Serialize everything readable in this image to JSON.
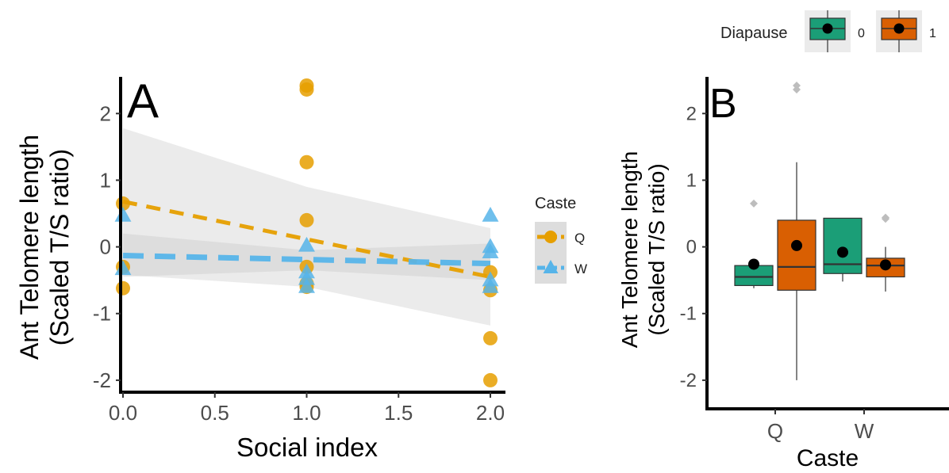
{
  "chart_data": [
    {
      "type": "scatter",
      "panel_label": "A",
      "xlabel": "Social index",
      "ylabel": [
        "Ant Telomere length",
        "(Scaled T/S ratio)"
      ],
      "xlim": [
        -0.05,
        2.05
      ],
      "ylim": [
        -2.12,
        2.55
      ],
      "xticks": [
        "0.0",
        "0.5",
        "1.0",
        "1.5",
        "2.0"
      ],
      "yticks": [
        "-2",
        "-1",
        "0",
        "1",
        "2"
      ],
      "grid": false,
      "legend": {
        "title": "Caste",
        "placement": "right"
      },
      "series": [
        {
          "name": "Q",
          "color": "#E69F00",
          "marker": "circle",
          "line_style": "dashed",
          "points": [
            {
              "x": 0,
              "y": 0.65
            },
            {
              "x": 0,
              "y": -0.3
            },
            {
              "x": 0,
              "y": -0.62
            },
            {
              "x": 1,
              "y": 2.42
            },
            {
              "x": 1,
              "y": 2.36
            },
            {
              "x": 1,
              "y": 1.27
            },
            {
              "x": 1,
              "y": 0.4
            },
            {
              "x": 1,
              "y": -0.3
            },
            {
              "x": 1,
              "y": -0.55
            },
            {
              "x": 1,
              "y": -0.6
            },
            {
              "x": 2,
              "y": -0.38
            },
            {
              "x": 2,
              "y": -0.65
            },
            {
              "x": 2,
              "y": -1.37
            },
            {
              "x": 2,
              "y": -2.0
            }
          ],
          "fit": {
            "x": [
              0,
              2
            ],
            "y": [
              0.68,
              -0.45
            ]
          },
          "ci_upper": [
            1.78,
            0.9,
            0.28
          ],
          "ci_lower": [
            -0.42,
            -0.6,
            -1.18
          ]
        },
        {
          "name": "W",
          "color": "#56B4E9",
          "marker": "triangle",
          "line_style": "dashed",
          "points": [
            {
              "x": 0,
              "y": 0.47
            },
            {
              "x": 0,
              "y": -0.33
            },
            {
              "x": 1,
              "y": 0.02
            },
            {
              "x": 1,
              "y": -0.38
            },
            {
              "x": 1,
              "y": -0.48
            },
            {
              "x": 1,
              "y": -0.6
            },
            {
              "x": 2,
              "y": 0.47
            },
            {
              "x": 2,
              "y": 0.0
            },
            {
              "x": 2,
              "y": -0.08
            },
            {
              "x": 2,
              "y": -0.5
            },
            {
              "x": 2,
              "y": -0.6
            }
          ],
          "fit": {
            "x": [
              0,
              2
            ],
            "y": [
              -0.13,
              -0.25
            ]
          },
          "ci_upper": [
            0.2,
            -0.05,
            0.05
          ],
          "ci_lower": [
            -0.45,
            -0.35,
            -0.5
          ]
        }
      ]
    },
    {
      "type": "box",
      "panel_label": "B",
      "xlabel": "Caste",
      "ylabel": [
        "Ant Telomere length",
        "(Scaled T/S ratio)"
      ],
      "categories": [
        "Q",
        "W"
      ],
      "ylim": [
        -2.12,
        2.55
      ],
      "yticks": [
        "-2",
        "-1",
        "0",
        "1",
        "2"
      ],
      "grid": false,
      "legend": {
        "title": "Diapause",
        "placement": "top-right"
      },
      "series": [
        {
          "name": "0",
          "color": "#1B9E77",
          "boxes": [
            {
              "category": "Q",
              "q1": -0.58,
              "median": -0.45,
              "q3": -0.28,
              "whisker_low": -0.62,
              "whisker_high": -0.22,
              "mean": -0.26,
              "outliers": [
                0.65
              ]
            },
            {
              "category": "W",
              "q1": -0.4,
              "median": -0.26,
              "q3": 0.43,
              "whisker_low": -0.52,
              "whisker_high": 0.43,
              "mean": -0.08,
              "outliers": []
            }
          ]
        },
        {
          "name": "1",
          "color": "#D95F02",
          "boxes": [
            {
              "category": "Q",
              "q1": -0.65,
              "median": -0.3,
              "q3": 0.4,
              "whisker_low": -2.0,
              "whisker_high": 1.27,
              "mean": 0.02,
              "outliers": [
                2.42,
                2.36
              ]
            },
            {
              "category": "W",
              "q1": -0.45,
              "median": -0.28,
              "q3": -0.17,
              "whisker_low": -0.67,
              "whisker_high": 0.0,
              "mean": -0.27,
              "outliers": [
                0.44,
                0.42
              ]
            }
          ]
        }
      ]
    }
  ]
}
